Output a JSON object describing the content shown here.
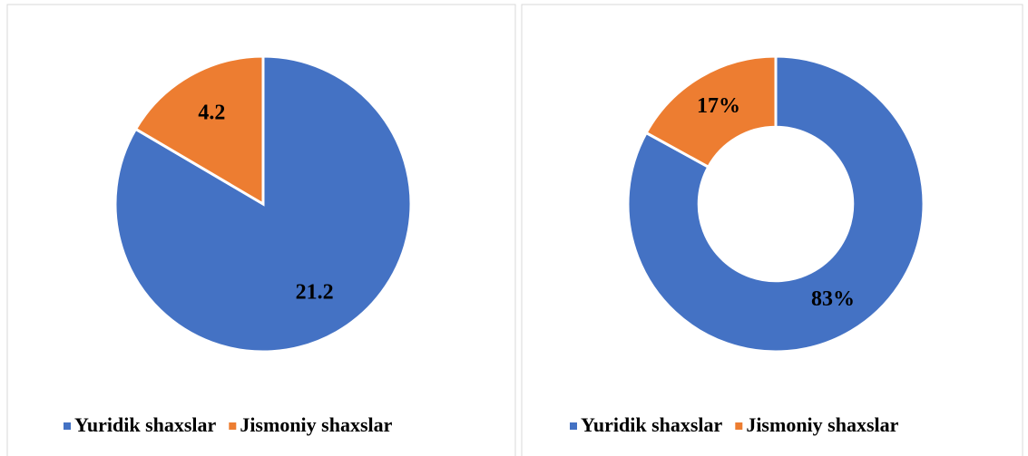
{
  "chart_data": [
    {
      "type": "pie",
      "categories": [
        "Yuridik shaxslar",
        "Jismoniy shaxslar"
      ],
      "values": [
        21.2,
        4.2
      ],
      "colors": [
        "#4472c4",
        "#ed7d31"
      ]
    },
    {
      "type": "donut",
      "categories": [
        "Yuridik shaxslar",
        "Jismoniy shaxslar"
      ],
      "values": [
        83,
        17
      ],
      "value_labels": [
        "83%",
        "17%"
      ],
      "colors": [
        "#4472c4",
        "#ed7d31"
      ]
    }
  ]
}
